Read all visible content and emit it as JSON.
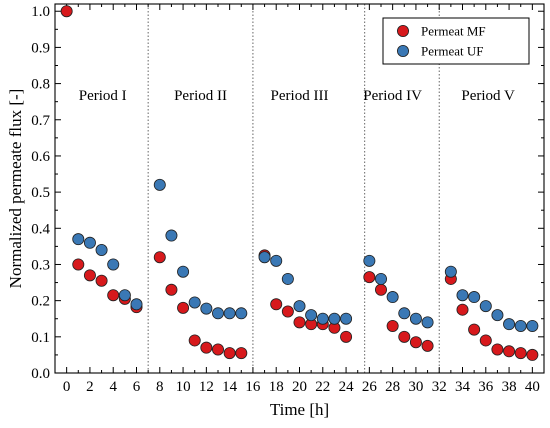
{
  "chart_data": {
    "type": "scatter",
    "title": "",
    "xlabel": "Time [h]",
    "ylabel": "Normalized permeate flux [-]",
    "xlim": [
      -1,
      41
    ],
    "ylim": [
      0,
      1.02
    ],
    "x_ticks": [
      0,
      2,
      4,
      6,
      8,
      10,
      12,
      14,
      16,
      18,
      20,
      22,
      24,
      26,
      28,
      30,
      32,
      34,
      36,
      38,
      40
    ],
    "y_ticks": [
      "0.0",
      "0.1",
      "0.2",
      "0.3",
      "0.4",
      "0.5",
      "0.6",
      "0.7",
      "0.8",
      "0.9",
      "1.0"
    ],
    "grid": false,
    "legend_position": "top-right",
    "periods": [
      {
        "label": "Period I",
        "x_center": 3.1
      },
      {
        "label": "Period II",
        "x_center": 11.5
      },
      {
        "label": "Period III",
        "x_center": 20.0
      },
      {
        "label": "Period IV",
        "x_center": 28.0
      },
      {
        "label": "Period V",
        "x_center": 36.2
      }
    ],
    "period_dividers": [
      7,
      16,
      25.6,
      32
    ],
    "series": [
      {
        "name": "Permeat MF",
        "color": "#d7191c",
        "points": [
          [
            0,
            1.0
          ],
          [
            1,
            0.3
          ],
          [
            2,
            0.27
          ],
          [
            3,
            0.255
          ],
          [
            4,
            0.215
          ],
          [
            5,
            0.205
          ],
          [
            6,
            0.182
          ],
          [
            8,
            0.32
          ],
          [
            9,
            0.23
          ],
          [
            10,
            0.18
          ],
          [
            11,
            0.09
          ],
          [
            12,
            0.07
          ],
          [
            13,
            0.065
          ],
          [
            14,
            0.055
          ],
          [
            15,
            0.055
          ],
          [
            17,
            0.325
          ],
          [
            18,
            0.19
          ],
          [
            19,
            0.17
          ],
          [
            20,
            0.14
          ],
          [
            21,
            0.135
          ],
          [
            22,
            0.135
          ],
          [
            23,
            0.125
          ],
          [
            24,
            0.1
          ],
          [
            26,
            0.265
          ],
          [
            27,
            0.23
          ],
          [
            28,
            0.13
          ],
          [
            29,
            0.1
          ],
          [
            30,
            0.085
          ],
          [
            31,
            0.075
          ],
          [
            33,
            0.26
          ],
          [
            34,
            0.175
          ],
          [
            35,
            0.12
          ],
          [
            36,
            0.09
          ],
          [
            37,
            0.065
          ],
          [
            38,
            0.06
          ],
          [
            39,
            0.055
          ],
          [
            40,
            0.05
          ]
        ]
      },
      {
        "name": "Permeat UF",
        "color": "#3a78b5",
        "points": [
          [
            1,
            0.37
          ],
          [
            2,
            0.36
          ],
          [
            3,
            0.34
          ],
          [
            4,
            0.3
          ],
          [
            5,
            0.215
          ],
          [
            6,
            0.19
          ],
          [
            8,
            0.52
          ],
          [
            9,
            0.38
          ],
          [
            10,
            0.28
          ],
          [
            11,
            0.195
          ],
          [
            12,
            0.178
          ],
          [
            13,
            0.165
          ],
          [
            14,
            0.165
          ],
          [
            15,
            0.165
          ],
          [
            17,
            0.32
          ],
          [
            18,
            0.31
          ],
          [
            19,
            0.26
          ],
          [
            20,
            0.185
          ],
          [
            21,
            0.16
          ],
          [
            22,
            0.15
          ],
          [
            23,
            0.15
          ],
          [
            24,
            0.15
          ],
          [
            26,
            0.31
          ],
          [
            27,
            0.26
          ],
          [
            28,
            0.21
          ],
          [
            29,
            0.165
          ],
          [
            30,
            0.15
          ],
          [
            31,
            0.14
          ],
          [
            33,
            0.28
          ],
          [
            34,
            0.215
          ],
          [
            35,
            0.21
          ],
          [
            36,
            0.185
          ],
          [
            37,
            0.16
          ],
          [
            38,
            0.135
          ],
          [
            39,
            0.13
          ],
          [
            40,
            0.13
          ]
        ]
      }
    ]
  }
}
